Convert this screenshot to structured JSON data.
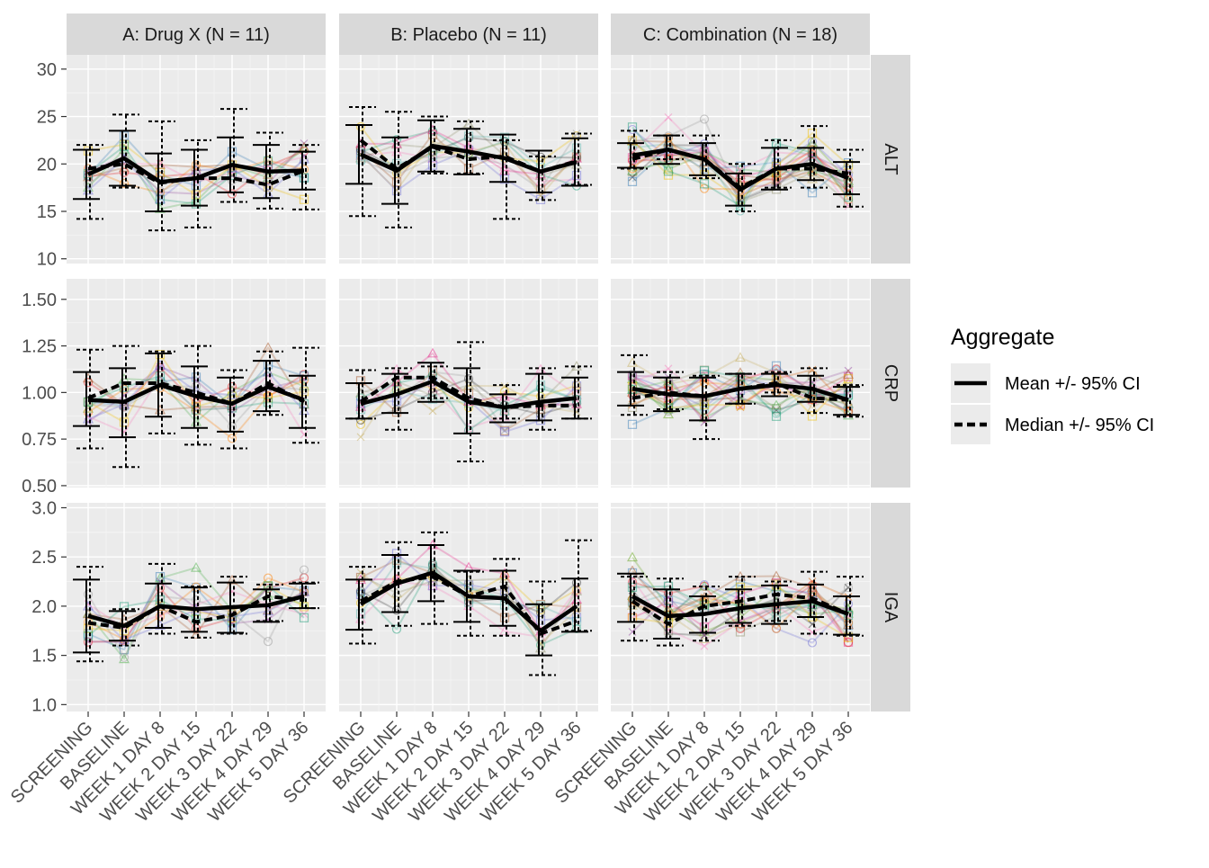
{
  "chart_data": {
    "type": "line",
    "facet_columns": [
      "A: Drug X (N = 11)",
      "B: Placebo (N = 11)",
      "C: Combination (N = 18)"
    ],
    "facet_rows": [
      "ALT",
      "CRP",
      "IGA"
    ],
    "x_categories": [
      "SCREENING",
      "BASELINE",
      "WEEK 1 DAY 8",
      "WEEK 2 DAY 15",
      "WEEK 3 DAY 22",
      "WEEK 4 DAY 29",
      "WEEK 5 DAY 36"
    ],
    "y_axes": {
      "ALT": {
        "ylim": [
          9.5,
          31.5
        ],
        "ticks": [
          10,
          15,
          20,
          25,
          30
        ],
        "tick_labels": [
          "10",
          "15",
          "20",
          "25",
          "30"
        ]
      },
      "CRP": {
        "ylim": [
          0.49,
          1.61
        ],
        "ticks": [
          0.5,
          0.75,
          1.0,
          1.25,
          1.5
        ],
        "tick_labels": [
          "0.50",
          "0.75",
          "1.00",
          "1.25",
          "1.50"
        ]
      },
      "IGA": {
        "ylim": [
          0.93,
          3.05
        ],
        "ticks": [
          1.0,
          1.5,
          2.0,
          2.5,
          3.0
        ],
        "tick_labels": [
          "1.0",
          "1.5",
          "2.0",
          "2.5",
          "3.0"
        ]
      }
    },
    "legend": {
      "title": "Aggregate",
      "position": "right",
      "entries": [
        {
          "label": "Mean +/- 95% CI",
          "line": "solid"
        },
        {
          "label": "Median +/- 95% CI",
          "line": "dashed"
        }
      ]
    },
    "panels": [
      {
        "row": "ALT",
        "col": "A: Drug X (N = 11)",
        "mean": [
          18.9,
          20.6,
          18.1,
          18.5,
          19.9,
          19.2,
          19.3
        ],
        "mean_lo": [
          16.3,
          17.7,
          15.0,
          15.6,
          17.0,
          16.4,
          17.3
        ],
        "mean_hi": [
          21.5,
          23.5,
          21.1,
          21.5,
          22.8,
          22.0,
          21.3
        ],
        "median": [
          19.5,
          20.0,
          18.0,
          18.5,
          18.5,
          17.8,
          19.3
        ],
        "median_lo": [
          14.2,
          17.5,
          13.0,
          13.3,
          16.0,
          15.3,
          15.2
        ],
        "median_hi": [
          22.0,
          25.2,
          24.5,
          22.5,
          25.8,
          23.3,
          22.0
        ]
      },
      {
        "row": "ALT",
        "col": "B: Placebo (N = 11)",
        "mean": [
          21.0,
          19.3,
          21.9,
          21.3,
          20.6,
          19.2,
          20.2
        ],
        "mean_lo": [
          17.9,
          15.8,
          19.2,
          18.9,
          18.1,
          17.0,
          17.7
        ],
        "mean_hi": [
          24.1,
          22.8,
          24.6,
          23.7,
          23.1,
          21.4,
          22.7
        ],
        "median": [
          22.5,
          19.5,
          21.8,
          20.5,
          20.8,
          19.2,
          20.3
        ],
        "median_lo": [
          14.5,
          13.3,
          19.0,
          19.0,
          14.2,
          16.2,
          17.8
        ],
        "median_hi": [
          26.0,
          25.5,
          25.0,
          24.5,
          22.5,
          20.8,
          23.2
        ]
      },
      {
        "row": "ALT",
        "col": "C: Combination (N = 18)",
        "mean": [
          20.9,
          21.5,
          20.5,
          17.3,
          19.5,
          20.0,
          18.5
        ],
        "mean_lo": [
          19.6,
          20.0,
          18.8,
          15.6,
          17.3,
          18.3,
          16.8
        ],
        "mean_hi": [
          22.2,
          23.0,
          22.2,
          19.0,
          21.7,
          21.7,
          20.2
        ],
        "median": [
          20.5,
          21.5,
          20.5,
          17.5,
          19.5,
          19.5,
          19.0
        ],
        "median_lo": [
          19.5,
          20.5,
          18.5,
          15.0,
          17.5,
          17.5,
          15.5
        ],
        "median_hi": [
          23.5,
          23.0,
          23.0,
          20.0,
          22.5,
          24.0,
          21.5
        ]
      },
      {
        "row": "CRP",
        "col": "A: Drug X (N = 11)",
        "mean": [
          0.96,
          0.95,
          1.04,
          0.98,
          0.94,
          1.03,
          0.96
        ],
        "mean_lo": [
          0.82,
          0.76,
          0.87,
          0.81,
          0.79,
          0.9,
          0.81
        ],
        "mean_hi": [
          1.11,
          1.13,
          1.21,
          1.14,
          1.08,
          1.17,
          1.09
        ],
        "median": [
          0.97,
          1.05,
          1.05,
          1.0,
          0.94,
          1.05,
          0.95
        ],
        "median_lo": [
          0.7,
          0.6,
          0.78,
          0.72,
          0.7,
          0.88,
          0.73
        ],
        "median_hi": [
          1.23,
          1.25,
          1.22,
          1.25,
          1.12,
          1.22,
          1.24
        ]
      },
      {
        "row": "CRP",
        "col": "B: Placebo (N = 11)",
        "mean": [
          0.94,
          0.99,
          1.06,
          0.95,
          0.92,
          0.95,
          0.97
        ],
        "mean_lo": [
          0.86,
          0.89,
          0.95,
          0.78,
          0.84,
          0.85,
          0.86
        ],
        "mean_hi": [
          1.05,
          1.1,
          1.16,
          1.13,
          0.99,
          1.1,
          1.08
        ],
        "median": [
          0.95,
          1.08,
          1.08,
          0.97,
          0.92,
          0.93,
          0.93
        ],
        "median_lo": [
          0.86,
          0.8,
          0.97,
          0.63,
          0.86,
          0.8,
          0.86
        ],
        "median_hi": [
          1.12,
          1.13,
          1.14,
          1.27,
          1.04,
          1.13,
          1.14
        ]
      },
      {
        "row": "CRP",
        "col": "C: Combination (N = 18)",
        "mean": [
          1.02,
          0.99,
          0.98,
          1.02,
          1.04,
          1.02,
          0.96
        ],
        "mean_lo": [
          0.93,
          0.9,
          0.85,
          0.94,
          0.98,
          0.95,
          0.88
        ],
        "mean_hi": [
          1.11,
          1.08,
          1.08,
          1.1,
          1.1,
          1.09,
          1.03
        ],
        "median": [
          0.97,
          1.0,
          0.98,
          1.02,
          1.05,
          0.97,
          0.96
        ],
        "median_lo": [
          0.88,
          0.91,
          0.75,
          0.94,
          1.0,
          0.89,
          0.87
        ],
        "median_hi": [
          1.2,
          1.11,
          1.09,
          1.1,
          1.11,
          1.13,
          1.04
        ]
      },
      {
        "row": "IGA",
        "col": "A: Drug X (N = 11)",
        "mean": [
          1.9,
          1.8,
          2.0,
          1.97,
          1.99,
          2.01,
          2.1
        ],
        "mean_lo": [
          1.53,
          1.65,
          1.78,
          1.74,
          1.73,
          1.84,
          1.98
        ],
        "mean_hi": [
          2.27,
          1.95,
          2.23,
          2.19,
          2.24,
          2.17,
          2.23
        ],
        "median": [
          1.83,
          1.78,
          2.0,
          1.84,
          1.91,
          2.1,
          2.06
        ],
        "median_lo": [
          1.44,
          1.6,
          1.72,
          1.68,
          1.72,
          1.85,
          1.98
        ],
        "median_hi": [
          2.4,
          1.97,
          2.43,
          2.2,
          2.3,
          2.22,
          2.24
        ]
      },
      {
        "row": "IGA",
        "col": "B: Placebo (N = 11)",
        "mean": [
          2.02,
          2.23,
          2.34,
          2.1,
          2.08,
          1.75,
          2.0
        ],
        "mean_lo": [
          1.76,
          1.94,
          2.05,
          1.84,
          1.8,
          1.5,
          1.74
        ],
        "mean_hi": [
          2.27,
          2.52,
          2.62,
          2.36,
          2.36,
          2.02,
          2.28
        ],
        "median": [
          2.05,
          2.25,
          2.3,
          2.1,
          2.2,
          1.72,
          1.85
        ],
        "median_lo": [
          1.62,
          1.8,
          1.82,
          1.7,
          1.7,
          1.3,
          1.75
        ],
        "median_hi": [
          2.4,
          2.65,
          2.75,
          2.35,
          2.48,
          2.25,
          2.67
        ]
      },
      {
        "row": "IGA",
        "col": "C: Combination (N = 18)",
        "mean": [
          2.1,
          1.9,
          1.92,
          1.98,
          2.02,
          2.05,
          1.92
        ],
        "mean_lo": [
          1.84,
          1.67,
          1.73,
          1.83,
          1.82,
          1.89,
          1.71
        ],
        "mean_hi": [
          2.33,
          2.17,
          2.1,
          2.17,
          2.21,
          2.22,
          2.1
        ],
        "median": [
          2.05,
          1.82,
          2.0,
          2.05,
          2.12,
          2.08,
          1.92
        ],
        "median_lo": [
          1.65,
          1.6,
          1.65,
          1.8,
          1.85,
          1.72,
          1.7
        ],
        "median_hi": [
          2.3,
          2.28,
          2.2,
          2.3,
          2.25,
          2.35,
          2.3
        ]
      }
    ]
  }
}
